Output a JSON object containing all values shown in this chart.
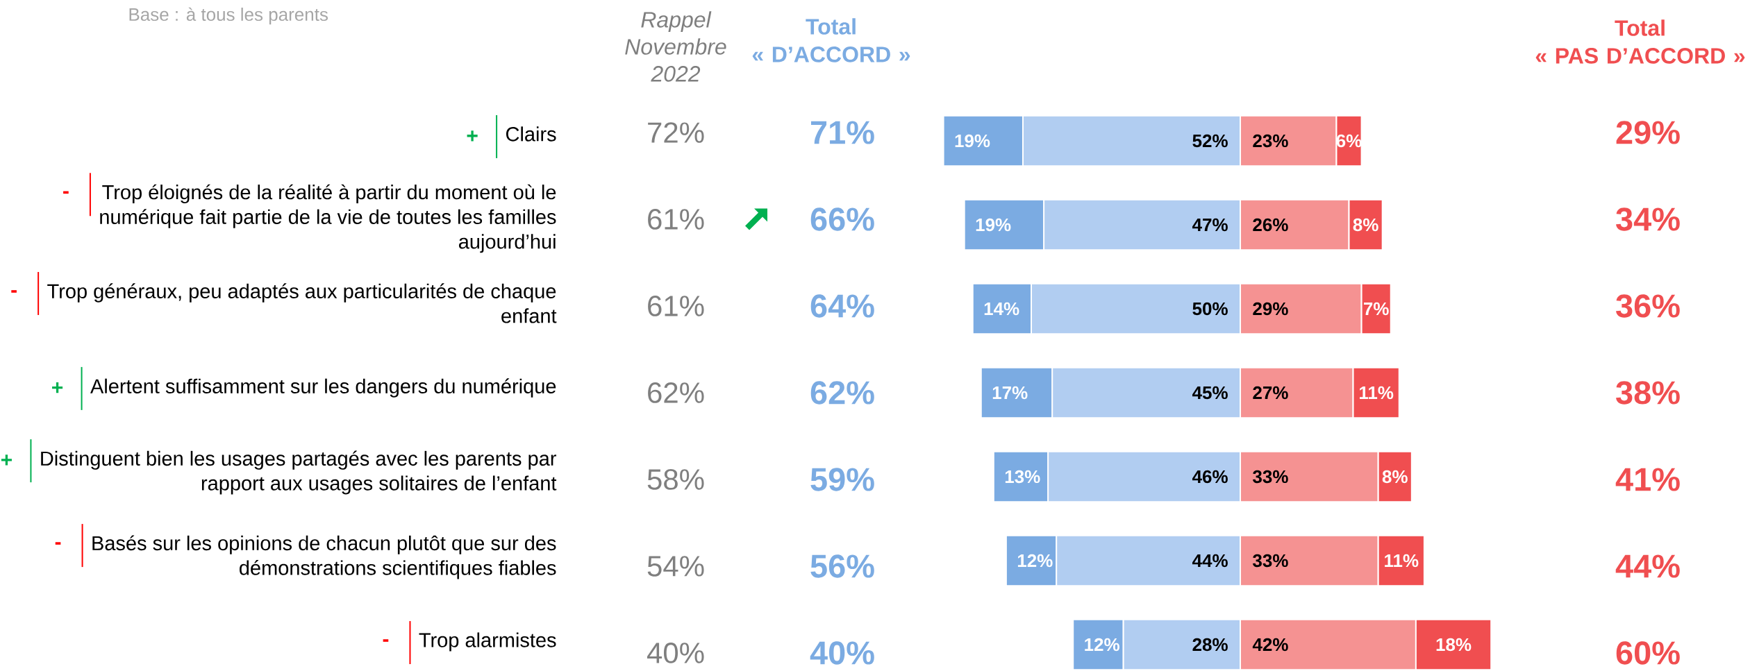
{
  "chart_data": [
    {
      "type": "bar",
      "orientation": "horizontal",
      "stacked": true,
      "tick_labels": "y",
      "categories": [
        "Clairs",
        "Trop éloignés de la réalité à partir du moment où le numérique fait partie de la vie de toutes les familles aujourd’hui",
        "Trop généraux, peu adaptés aux particularités de chaque enfant",
        "Alertent suffisamment sur les dangers du numérique",
        "Distinguent bien les usages partagés avec les parents par rapport aux usages solitaires de l’enfant",
        "Basés sur les opinions de chacun plutôt que sur des démonstrations scientifiques fiables",
        "Trop alarmistes"
      ],
      "series": [
        {
          "color": "#B1CDF1",
          "values": [
            52,
            47,
            50,
            45,
            46,
            44,
            28
          ],
          "value_labels": [
            "52%",
            "47%",
            "50%",
            "45%",
            "46%",
            "44%",
            "28%"
          ]
        },
        {
          "color": "#7BABE2",
          "values": [
            19,
            19,
            14,
            17,
            13,
            12,
            12
          ],
          "value_labels": [
            "19%",
            "19%",
            "14%",
            "17%",
            "13%",
            "12%",
            "12%"
          ]
        }
      ],
      "annotations": [
        "Base : à tous les parents",
        "Rappel Novembre 2022",
        "Total « D’ACCORD »",
        "+",
        "72%",
        "71%",
        "-",
        "61%",
        "66%",
        "-",
        "61%",
        "64%",
        "+",
        "62%",
        "62%",
        "+",
        "58%",
        "59%",
        "-",
        "54%",
        "56%",
        "-",
        "40%",
        "40%"
      ]
    },
    {
      "type": "bar",
      "orientation": "horizontal",
      "stacked": true,
      "tick_labels": false,
      "categories": [
        null,
        null,
        null,
        null,
        null,
        null,
        null
      ],
      "series": [
        {
          "color": "#F59292",
          "values": [
            23,
            26,
            29,
            27,
            33,
            33,
            42
          ],
          "value_labels": [
            "23%",
            "26%",
            "29%",
            "27%",
            "33%",
            "33%",
            "42%"
          ]
        },
        {
          "color": "#F04E50",
          "values": [
            6,
            8,
            7,
            11,
            8,
            11,
            18
          ],
          "value_labels": [
            "6%",
            "8%",
            "7%",
            "11%",
            "8%",
            "11%",
            "18%"
          ]
        }
      ],
      "annotations": [
        "Total « PAS D’ACCORD »",
        "29%",
        "34%",
        "36%",
        "38%",
        "41%",
        "44%",
        "60%"
      ]
    }
  ]
}
